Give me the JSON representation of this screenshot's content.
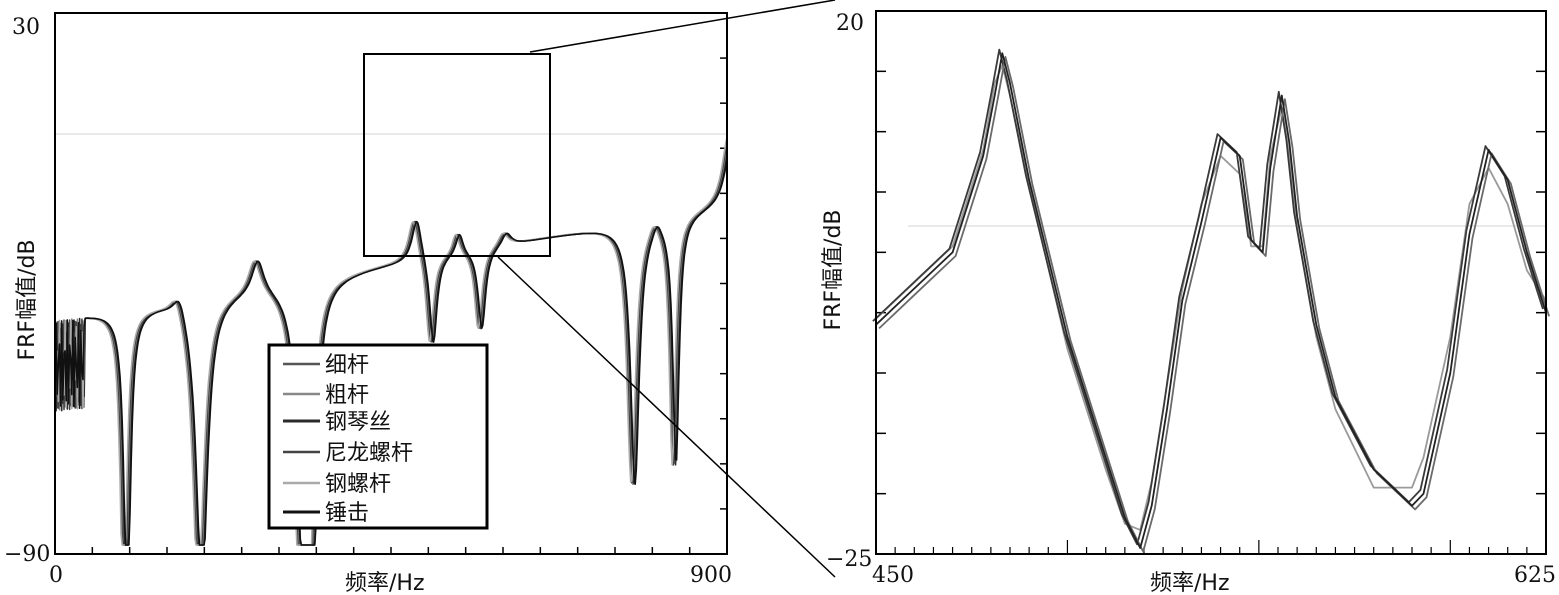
{
  "chart_data": [
    {
      "type": "line",
      "xlabel": "频率/Hz",
      "ylabel": "FRF幅值/dB",
      "xlim": [
        0,
        900
      ],
      "ylim": [
        -90,
        30
      ],
      "x_tick_labels": [
        "0",
        "900"
      ],
      "y_tick_labels": [
        "30",
        "−90"
      ],
      "legend_placement": "bottom-center",
      "zoom_box": {
        "x_range": [
          450,
          625
        ],
        "y_range": [
          -25,
          20
        ]
      },
      "series": [
        {
          "name": "细杆",
          "color": "#555555"
        },
        {
          "name": "粗杆",
          "color": "#888888"
        },
        {
          "name": "钢琴丝",
          "color": "#2a2a2a"
        },
        {
          "name": "尼龙螺杆",
          "color": "#444444"
        },
        {
          "name": "钢螺杆",
          "color": "#aaaaaa"
        },
        {
          "name": "锤击",
          "color": "#111111"
        }
      ],
      "resonance_peaks_hz": [
        80,
        165,
        270,
        335,
        483,
        540,
        603,
        805,
        905
      ],
      "antiresonance_dips_hz": [
        95,
        195,
        330,
        345,
        505,
        570,
        775,
        830
      ]
    },
    {
      "type": "line",
      "xlabel": "频率/Hz",
      "ylabel": "FRF幅值/dB",
      "xlim": [
        450,
        625
      ],
      "ylim": [
        -25,
        20
      ],
      "x_tick_labels": [
        "450",
        "625"
      ],
      "y_tick_labels": [
        "20",
        "−25"
      ],
      "curves": {
        "base": {
          "x": [
            450,
            460,
            470,
            478,
            481,
            483,
            485,
            490,
            500,
            510,
            515,
            519,
            522,
            526,
            530,
            535,
            540,
            545,
            548,
            551,
            553,
            556,
            558,
            560,
            565,
            570,
            580,
            590,
            593,
            600,
            605,
            610,
            615,
            620,
            625
          ],
          "y": [
            -6,
            -3,
            0,
            8,
            13,
            16.5,
            14,
            6,
            -7,
            -17,
            -22,
            -24.5,
            -21,
            -13,
            -4,
            2.5,
            9.5,
            8,
            1,
            0,
            7,
            13,
            9,
            3,
            -6,
            -12,
            -18,
            -21,
            -20,
            -10,
            1.5,
            8.5,
            6,
            0,
            -5
          ]
        },
        "shifted": {
          "x": [
            450,
            460,
            470,
            478,
            481,
            483,
            485,
            490,
            500,
            510,
            515,
            519,
            522,
            526,
            530,
            535,
            540,
            545,
            548,
            551,
            553,
            556,
            558,
            560,
            565,
            570,
            580,
            590,
            593,
            600,
            605,
            610,
            615,
            620,
            625
          ],
          "y": [
            -5.5,
            -2.5,
            0.5,
            8.5,
            14,
            15.5,
            13,
            5.5,
            -8,
            -18,
            -22.5,
            -23,
            -19,
            -11,
            -3,
            4,
            8,
            6.5,
            0.5,
            0.5,
            8,
            12,
            8,
            2,
            -7,
            -13,
            -19.5,
            -19.5,
            -17,
            -7,
            4,
            7,
            4,
            -1.5,
            -4
          ]
        }
      }
    }
  ]
}
